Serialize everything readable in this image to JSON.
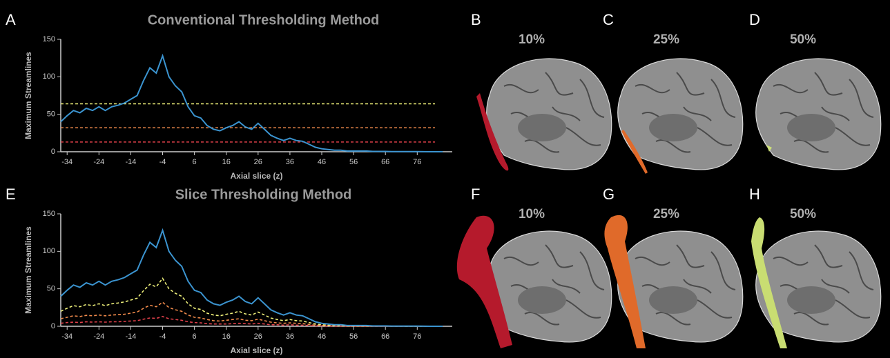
{
  "chart_data": [
    {
      "type": "line",
      "panel": "A",
      "title": "Conventional Thresholding Method",
      "xlabel": "Axial slice (z)",
      "ylabel": "Maximum Streamlines",
      "xlim": [
        -36,
        87
      ],
      "xticks": [
        -34,
        -24,
        -14,
        -4,
        6,
        16,
        26,
        36,
        46,
        56,
        66,
        76
      ],
      "ylim": [
        0,
        150
      ],
      "yticks": [
        0,
        50,
        100,
        150
      ],
      "x": [
        -36,
        -34,
        -32,
        -30,
        -28,
        -26,
        -24,
        -22,
        -20,
        -18,
        -16,
        -14,
        -12,
        -10,
        -8,
        -6,
        -4,
        -2,
        0,
        2,
        4,
        6,
        8,
        10,
        12,
        14,
        16,
        18,
        20,
        22,
        24,
        26,
        28,
        30,
        32,
        34,
        36,
        38,
        40,
        42,
        44,
        46,
        48,
        50,
        52,
        54,
        56,
        58,
        60,
        62,
        64,
        66,
        68,
        70,
        72,
        74,
        76,
        78,
        80,
        82,
        84
      ],
      "series": [
        {
          "color": "#3b94d0",
          "dashed": false,
          "values": [
            40,
            48,
            55,
            52,
            58,
            55,
            60,
            55,
            60,
            62,
            65,
            70,
            75,
            95,
            112,
            105,
            128,
            100,
            88,
            80,
            60,
            48,
            45,
            35,
            30,
            28,
            32,
            35,
            40,
            33,
            30,
            38,
            30,
            22,
            18,
            15,
            18,
            15,
            14,
            10,
            6,
            4,
            3,
            2,
            2,
            1,
            1,
            1,
            1,
            0.5,
            0.5,
            0.5,
            0.3,
            0.3,
            0.2,
            0.2,
            0.2,
            0.1,
            0,
            0,
            0
          ]
        }
      ],
      "reference_lines": [
        {
          "value": 64,
          "color": "#eef07a"
        },
        {
          "value": 32,
          "color": "#f08a4b"
        },
        {
          "value": 13,
          "color": "#e0404a"
        }
      ]
    },
    {
      "type": "line",
      "panel": "E",
      "title": "Slice Thresholding Method",
      "xlabel": "Axial slice (z)",
      "ylabel": "Maximum Streamlines",
      "xlim": [
        -36,
        87
      ],
      "xticks": [
        -34,
        -24,
        -14,
        -4,
        6,
        16,
        26,
        36,
        46,
        56,
        66,
        76
      ],
      "ylim": [
        0,
        150
      ],
      "yticks": [
        0,
        50,
        100,
        150
      ],
      "x": [
        -36,
        -34,
        -32,
        -30,
        -28,
        -26,
        -24,
        -22,
        -20,
        -18,
        -16,
        -14,
        -12,
        -10,
        -8,
        -6,
        -4,
        -2,
        0,
        2,
        4,
        6,
        8,
        10,
        12,
        14,
        16,
        18,
        20,
        22,
        24,
        26,
        28,
        30,
        32,
        34,
        36,
        38,
        40,
        42,
        44,
        46,
        48,
        50,
        52,
        54,
        56,
        58,
        60,
        62,
        64,
        66,
        68,
        70,
        72,
        74,
        76,
        78,
        80,
        82,
        84
      ],
      "series": [
        {
          "color": "#3b94d0",
          "dashed": false,
          "values": [
            40,
            48,
            55,
            52,
            58,
            55,
            60,
            55,
            60,
            62,
            65,
            70,
            75,
            95,
            112,
            105,
            128,
            100,
            88,
            80,
            60,
            48,
            45,
            35,
            30,
            28,
            32,
            35,
            40,
            33,
            30,
            38,
            30,
            22,
            18,
            15,
            18,
            15,
            14,
            10,
            6,
            4,
            3,
            2,
            2,
            1,
            1,
            1,
            1,
            0.5,
            0.5,
            0.5,
            0.3,
            0.3,
            0.2,
            0.2,
            0.2,
            0.1,
            0,
            0,
            0
          ]
        },
        {
          "color": "#eef07a",
          "dashed": true,
          "values": [
            20,
            24,
            27.5,
            26,
            29,
            27.5,
            30,
            27.5,
            30,
            31,
            32.5,
            35,
            37.5,
            47.5,
            56,
            52.5,
            64,
            50,
            44,
            40,
            30,
            24,
            22.5,
            17.5,
            15,
            14,
            16,
            17.5,
            20,
            16.5,
            15,
            19,
            15,
            11,
            9,
            7.5,
            9,
            7.5,
            7,
            5,
            3,
            2,
            1.5,
            1,
            1,
            0.5,
            0.5,
            0.5,
            0.5,
            0.3,
            0.3,
            0.3,
            0.2,
            0.2,
            0.1,
            0.1,
            0.1,
            0,
            0,
            0,
            0
          ]
        },
        {
          "color": "#f08a4b",
          "dashed": true,
          "values": [
            10,
            12,
            14,
            13,
            14.5,
            14,
            15,
            14,
            15,
            15.5,
            16,
            17.5,
            19,
            24,
            28,
            26,
            32,
            25,
            22,
            20,
            15,
            12,
            11,
            9,
            7.5,
            7,
            8,
            9,
            10,
            8,
            7.5,
            9.5,
            7.5,
            5.5,
            4.5,
            4,
            4.5,
            4,
            3.5,
            2.5,
            1.5,
            1,
            0.8,
            0.5,
            0.5,
            0.3,
            0.3,
            0.3,
            0.3,
            0.1,
            0.1,
            0.1,
            0.1,
            0.1,
            0,
            0,
            0,
            0,
            0,
            0,
            0
          ]
        },
        {
          "color": "#e0404a",
          "dashed": true,
          "values": [
            4,
            5,
            5.5,
            5,
            6,
            5.5,
            6,
            5.5,
            6,
            6,
            6.5,
            7,
            7.5,
            9.5,
            11,
            10.5,
            13,
            10,
            9,
            8,
            6,
            5,
            4.5,
            3.5,
            3,
            3,
            3,
            3.5,
            4,
            3.5,
            3,
            4,
            3,
            2,
            2,
            1.5,
            2,
            1.5,
            1.5,
            1,
            0.5,
            0.5,
            0.3,
            0.2,
            0.2,
            0.1,
            0.1,
            0.1,
            0.1,
            0,
            0,
            0,
            0,
            0,
            0,
            0,
            0,
            0,
            0,
            0,
            0
          ]
        }
      ],
      "reference_lines": []
    }
  ],
  "panels": [
    {
      "letter": "B",
      "percent": "10%"
    },
    {
      "letter": "C",
      "percent": "25%"
    },
    {
      "letter": "D",
      "percent": "50%"
    },
    {
      "letter": "F",
      "percent": "10%"
    },
    {
      "letter": "G",
      "percent": "25%"
    },
    {
      "letter": "H",
      "percent": "50%"
    }
  ]
}
